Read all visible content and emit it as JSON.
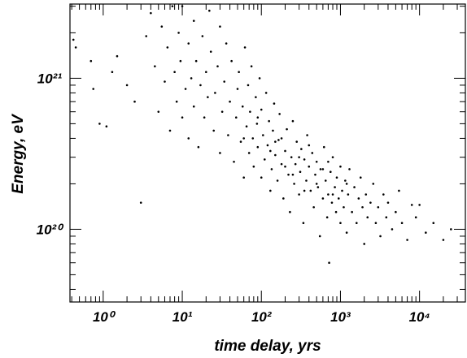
{
  "chart_data": {
    "type": "scatter",
    "xlabel": "time delay, yrs",
    "ylabel": "Energy, eV",
    "xscale": "log",
    "yscale": "log",
    "color": "#000000",
    "xlim": [
      0.38,
      38000
    ],
    "ylim": [
      3.3e+19,
      3.1e+21
    ],
    "xticks": [
      {
        "value": 1,
        "label": "10⁰"
      },
      {
        "value": 10,
        "label": "10¹"
      },
      {
        "value": 100,
        "label": "10²"
      },
      {
        "value": 1000,
        "label": "10³"
      },
      {
        "value": 10000,
        "label": "10⁴"
      }
    ],
    "yticks": [
      {
        "value": 1e+20,
        "label": "10²⁰"
      },
      {
        "value": 1e+21,
        "label": "10²¹"
      }
    ],
    "xminorticks": [
      0.4,
      0.5,
      0.6,
      0.7,
      0.8,
      0.9,
      2,
      3,
      4,
      5,
      6,
      7,
      8,
      9,
      20,
      30,
      40,
      50,
      60,
      70,
      80,
      90,
      200,
      300,
      400,
      500,
      600,
      700,
      800,
      900,
      2000,
      3000,
      4000,
      5000,
      6000,
      7000,
      8000,
      9000,
      20000,
      30000
    ],
    "yminorticks": [
      4e+19,
      5e+19,
      6e+19,
      7e+19,
      8e+19,
      9e+19,
      2e+20,
      3e+20,
      4e+20,
      5e+20,
      6e+20,
      7e+20,
      8e+20,
      9e+20,
      2e+21,
      3e+21
    ],
    "x": [
      0.42,
      0.45,
      0.7,
      0.75,
      0.9,
      1.1,
      1.3,
      1.5,
      2,
      2.5,
      3,
      3.5,
      4,
      4.5,
      5,
      5.5,
      6,
      6.5,
      7,
      7.5,
      8,
      8.5,
      9,
      9.5,
      10,
      10,
      11,
      12,
      12,
      13,
      14,
      14,
      15,
      16,
      17,
      18,
      19,
      20,
      21,
      22,
      23,
      25,
      26,
      28,
      30,
      30,
      32,
      34,
      36,
      38,
      40,
      42,
      45,
      48,
      50,
      52,
      55,
      58,
      60,
      62,
      65,
      68,
      70,
      72,
      75,
      78,
      80,
      85,
      88,
      90,
      95,
      100,
      100,
      105,
      110,
      115,
      120,
      125,
      130,
      135,
      140,
      145,
      150,
      160,
      165,
      170,
      180,
      190,
      200,
      210,
      220,
      230,
      240,
      250,
      260,
      270,
      280,
      300,
      310,
      320,
      340,
      350,
      370,
      380,
      400,
      420,
      440,
      460,
      480,
      500,
      520,
      550,
      560,
      600,
      620,
      650,
      680,
      700,
      720,
      750,
      780,
      800,
      850,
      880,
      900,
      950,
      1000,
      1000,
      1050,
      1100,
      1150,
      1200,
      1250,
      1300,
      1400,
      1500,
      1600,
      1700,
      1800,
      1900,
      2000,
      2100,
      2200,
      2400,
      2600,
      2800,
      3000,
      3200,
      3500,
      3800,
      4000,
      4500,
      5000,
      5500,
      6000,
      7000,
      8000,
      9000,
      10000,
      12000,
      15000,
      20000,
      25000,
      150,
      200,
      300,
      500,
      700,
      250,
      400,
      600,
      350,
      800,
      1200,
      60,
      90,
      130,
      180
    ],
    "values": [
      1.8e+21,
      1.6e+21,
      1.3e+21,
      8.5e+20,
      5e+20,
      4.8e+20,
      1.1e+21,
      1.4e+21,
      9e+20,
      7e+20,
      1.5e+20,
      1.9e+21,
      2.7e+21,
      1.2e+21,
      6e+20,
      2.2e+21,
      9.5e+20,
      1.6e+21,
      4.5e+20,
      3e+21,
      1.1e+21,
      7e+20,
      2e+21,
      1.3e+21,
      5.5e+20,
      3e+21,
      8.5e+20,
      1.7e+21,
      4e+20,
      1e+21,
      2.4e+21,
      6.5e+20,
      1.3e+21,
      3.5e+20,
      9e+20,
      1.9e+21,
      5.5e+20,
      1.1e+21,
      7.5e+20,
      2.8e+21,
      1.5e+21,
      4.5e+20,
      8e+20,
      1.2e+21,
      2.2e+21,
      3.2e+20,
      6e+20,
      9.5e+20,
      1.7e+21,
      4.2e+20,
      7e+20,
      1.3e+21,
      2.8e+20,
      5.5e+20,
      8.5e+20,
      1.1e+21,
      3.8e+20,
      6.5e+20,
      2.2e+20,
      1.6e+21,
      4.8e+20,
      9e+20,
      3.2e+20,
      6e+20,
      1.2e+21,
      4e+20,
      2.6e+20,
      7.5e+20,
      5e+20,
      3.5e+20,
      1e+21,
      2.2e+20,
      6.2e+20,
      4.2e+20,
      2.9e+20,
      8e+20,
      3.6e+20,
      5.2e+20,
      1.8e+20,
      2.5e+20,
      4.5e+20,
      6.8e+20,
      3.1e+20,
      2.1e+20,
      3.9e+20,
      5.8e+20,
      2.7e+20,
      1.6e+20,
      3.3e+20,
      4.6e+20,
      2.3e+20,
      1.3e+20,
      3e+20,
      5.2e+20,
      2e+20,
      2.7e+20,
      3.8e+20,
      1.7e+20,
      2.4e+20,
      3.4e+20,
      1.1e+20,
      2.9e+20,
      2.1e+20,
      4.2e+20,
      2.6e+20,
      1.8e+20,
      3.2e+20,
      1.4e+20,
      2.3e+20,
      2.8e+20,
      1.9e+20,
      9e+19,
      2.5e+20,
      1.6e+20,
      3.5e+20,
      2.1e+20,
      1.2e+20,
      1.7e+20,
      6e+19,
      2.4e+20,
      1.5e+20,
      3e+20,
      1.9e+20,
      1.3e+20,
      2.2e+20,
      1.6e+20,
      1.1e+20,
      2.6e+20,
      1.8e+20,
      1.4e+20,
      2.1e+20,
      9.5e+19,
      1.7e+20,
      2.5e+20,
      1.3e+20,
      1.9e+20,
      1.1e+20,
      1.6e+20,
      2.2e+20,
      1.4e+20,
      8e+19,
      1.7e+20,
      1.2e+20,
      1.5e+20,
      2e+20,
      1.1e+20,
      1.4e+20,
      9e+19,
      1.7e+20,
      1.2e+20,
      1.5e+20,
      1e+20,
      1.3e+20,
      1.8e+20,
      1.1e+20,
      8.5e+19,
      1.45e+20,
      1.2e+20,
      1.45e+20,
      9.5e+19,
      1.1e+20,
      8.5e+19,
      1e+20,
      3.8e+20,
      2.6e+20,
      3e+20,
      2e+20,
      2.8e+20,
      2.3e+20,
      3.6e+20,
      2.5e+20,
      1.8e+20,
      1.7e+20,
      2e+20,
      4e+20,
      5.5e+20,
      3.3e+20,
      4e+20
    ]
  }
}
